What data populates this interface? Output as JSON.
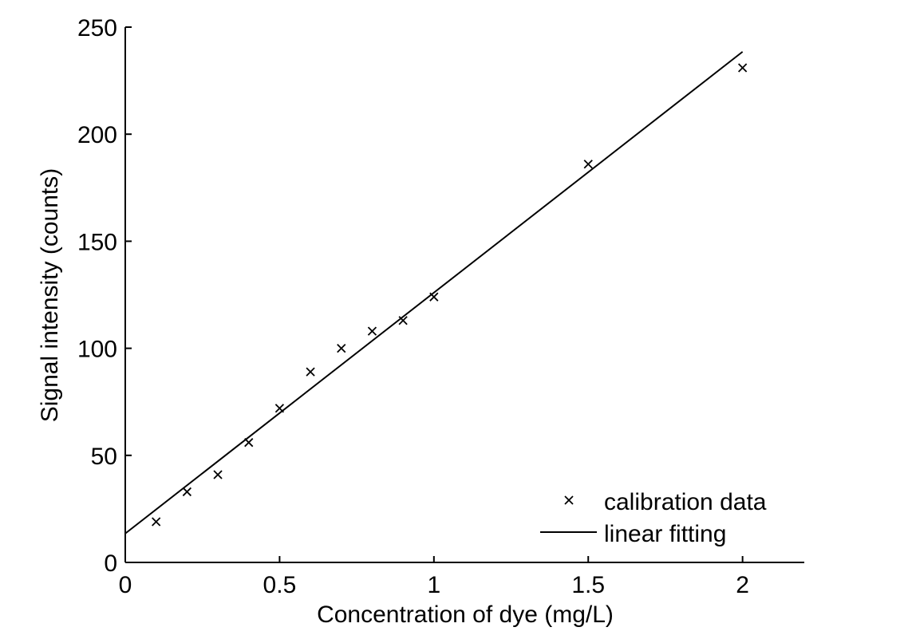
{
  "chart_data": {
    "type": "scatter",
    "xlabel": "Concentration of dye (mg/L)",
    "ylabel": "Signal intensity (counts)",
    "xlim": [
      0,
      2.2
    ],
    "ylim": [
      0,
      250
    ],
    "x_ticks": [
      {
        "value": 0,
        "label": "0"
      },
      {
        "value": 0.5,
        "label": "0.5"
      },
      {
        "value": 1,
        "label": "1"
      },
      {
        "value": 1.5,
        "label": "1.5"
      },
      {
        "value": 2,
        "label": "2"
      }
    ],
    "y_ticks": [
      {
        "value": 0,
        "label": "0"
      },
      {
        "value": 50,
        "label": "50"
      },
      {
        "value": 100,
        "label": "100"
      },
      {
        "value": 150,
        "label": "150"
      },
      {
        "value": 200,
        "label": "200"
      },
      {
        "value": 250,
        "label": "250"
      }
    ],
    "grid": false,
    "legend_position": "bottom-right",
    "series": [
      {
        "name": "calibration data",
        "kind": "scatter",
        "marker": "x",
        "color": "#000000",
        "x": [
          0.1,
          0.2,
          0.3,
          0.4,
          0.5,
          0.6,
          0.7,
          0.8,
          0.9,
          1.0,
          1.5,
          2.0
        ],
        "y": [
          19,
          33,
          41,
          56,
          72,
          89,
          100,
          108,
          113,
          124,
          186,
          231
        ]
      },
      {
        "name": "linear fitting",
        "kind": "line",
        "color": "#000000",
        "x": [
          0,
          2.0
        ],
        "y": [
          13.5,
          238.5
        ]
      }
    ]
  }
}
